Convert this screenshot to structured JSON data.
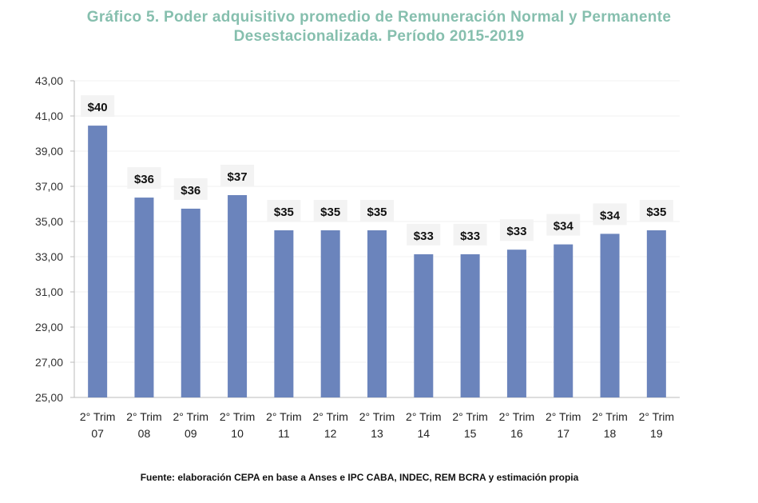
{
  "chart_data": {
    "type": "bar",
    "title": "Gráfico 5. Poder adquisitivo promedio de Remuneración Normal y Permanente Desestacionalizada. Período 2015-2019",
    "title_lines": [
      "Gráfico 5. Poder adquisitivo promedio de Remuneración Normal y Permanente",
      "Desestacionalizada. Período 2015-2019"
    ],
    "categories": [
      [
        "2° Trim",
        "07"
      ],
      [
        "2° Trim",
        "08"
      ],
      [
        "2° Trim",
        "09"
      ],
      [
        "2° Trim",
        "10"
      ],
      [
        "2° Trim",
        "11"
      ],
      [
        "2° Trim",
        "12"
      ],
      [
        "2° Trim",
        "13"
      ],
      [
        "2° Trim",
        "14"
      ],
      [
        "2° Trim",
        "15"
      ],
      [
        "2° Trim",
        "16"
      ],
      [
        "2° Trim",
        "17"
      ],
      [
        "2° Trim",
        "18"
      ],
      [
        "2° Trim",
        "19"
      ]
    ],
    "values": [
      40.45,
      36.36,
      35.73,
      36.5,
      34.5,
      34.5,
      34.5,
      33.14,
      33.14,
      33.4,
      33.7,
      34.3,
      34.5
    ],
    "data_labels": [
      "$40",
      "$36",
      "$36",
      "$37",
      "$35",
      "$35",
      "$35",
      "$33",
      "$33",
      "$33",
      "$34",
      "$34",
      "$35"
    ],
    "yticks": [
      "25,00",
      "27,00",
      "29,00",
      "31,00",
      "33,00",
      "35,00",
      "37,00",
      "39,00",
      "41,00",
      "43,00"
    ],
    "ylim": [
      25,
      43
    ],
    "xlabel": "",
    "ylabel": "",
    "grid": true,
    "bar_color": "#6b84bc",
    "title_color": "#86bfae"
  },
  "source": "Fuente: elaboración CEPA en base a Anses e IPC CABA, INDEC, REM BCRA y estimación propia"
}
